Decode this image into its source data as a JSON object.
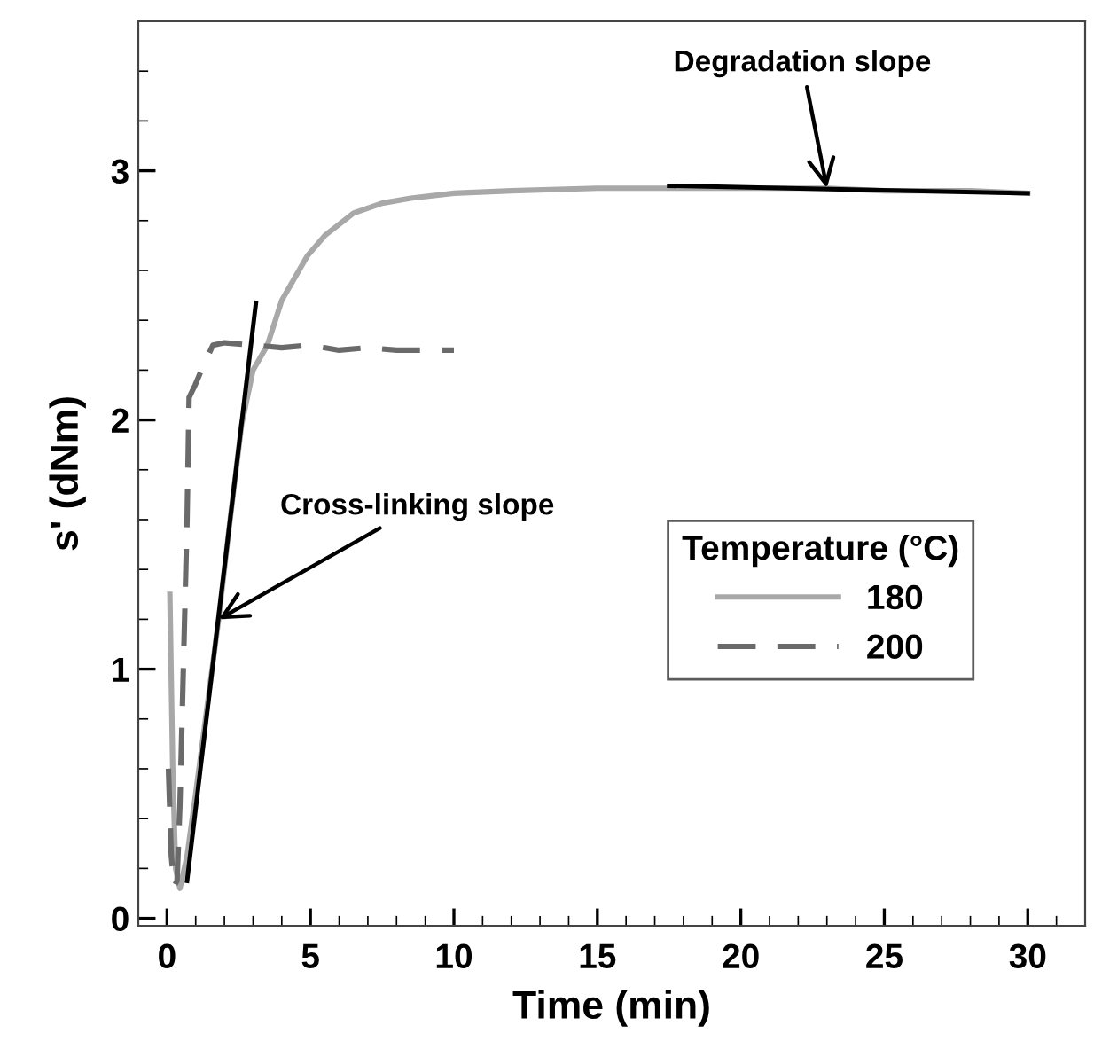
{
  "chart_data": {
    "type": "line",
    "xlabel": "Time (min)",
    "ylabel": "s' (dNm)",
    "legend_title": "Temperature (°C)",
    "xlim": [
      -1,
      32
    ],
    "ylim": [
      -0.03,
      3.6
    ],
    "xticks": [
      0,
      5,
      10,
      15,
      20,
      25,
      30
    ],
    "yticks": [
      0,
      1,
      2,
      3
    ],
    "grid": false,
    "legend": "right",
    "series": [
      {
        "name": "180",
        "color": "#a8a8a8",
        "line_style": "solid",
        "x": [
          0.1,
          0.2,
          0.3,
          0.45,
          0.7,
          1.0,
          1.4,
          1.8,
          2.2,
          2.6,
          3.0,
          3.5,
          4.0,
          4.9,
          5.5,
          6.5,
          7.5,
          8.5,
          10,
          12,
          15,
          17.5,
          20,
          23,
          25,
          28,
          30
        ],
        "values": [
          1.3,
          0.6,
          0.2,
          0.12,
          0.25,
          0.5,
          0.85,
          1.2,
          1.6,
          1.98,
          2.2,
          2.3,
          2.48,
          2.66,
          2.74,
          2.83,
          2.87,
          2.89,
          2.91,
          2.92,
          2.93,
          2.93,
          2.93,
          2.93,
          2.92,
          2.92,
          2.91
        ]
      },
      {
        "name": "200",
        "color": "#6a6a6a",
        "line_style": "dashed",
        "x": [
          0.05,
          0.15,
          0.25,
          0.35,
          0.45,
          0.57,
          0.7,
          0.77,
          0.98,
          1.2,
          1.6,
          2.0,
          3.0,
          4.0,
          5.0,
          6.0,
          7.0,
          8.0,
          9.0,
          10.0
        ],
        "values": [
          0.6,
          0.25,
          0.13,
          0.15,
          0.45,
          1.0,
          1.6,
          2.09,
          2.14,
          2.2,
          2.3,
          2.31,
          2.3,
          2.29,
          2.3,
          2.28,
          2.29,
          2.28,
          2.28,
          2.28
        ]
      },
      {
        "color": "#000000",
        "line_style": "solid",
        "x": [
          0.7,
          3.1
        ],
        "values": [
          0.15,
          2.47
        ]
      },
      {
        "color": "#000000",
        "line_style": "solid",
        "x": [
          17.5,
          30
        ],
        "values": [
          2.94,
          2.91
        ]
      }
    ],
    "annotations": [
      {
        "text": "Cross-linking slope",
        "x": 1.8,
        "y": 1.2
      },
      {
        "text": "Degradation slope",
        "x": 23,
        "y": 2.93
      }
    ]
  }
}
